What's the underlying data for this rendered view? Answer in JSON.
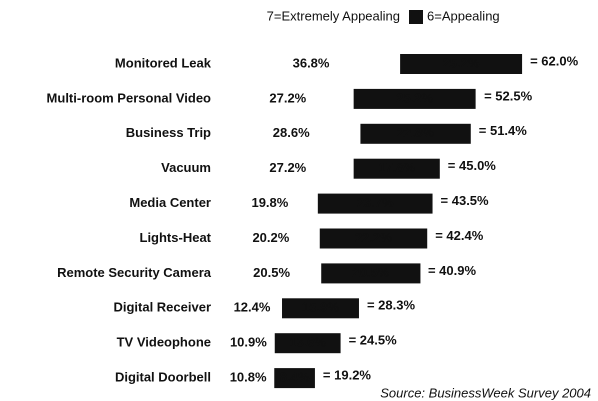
{
  "chart_data": {
    "type": "bar",
    "orientation": "horizontal",
    "stacked": true,
    "legend": "top",
    "categories": [
      "Monitored Leak",
      "Multi-room Personal Video",
      "Business Trip",
      "Vacuum",
      "Media Center",
      "Lights-Heat",
      "Remote Security Camera",
      "Digital Receiver",
      "TV Videophone",
      "Digital Doorbell"
    ],
    "series": [
      {
        "name": "7=Extremely Appealing",
        "color": "#ffffff",
        "values": [
          36.8,
          27.2,
          28.6,
          27.2,
          19.8,
          20.2,
          20.5,
          12.4,
          10.9,
          10.8
        ],
        "value_labels": [
          "36.8%",
          "27.2%",
          "28.6%",
          "27.2%",
          "19.8%",
          "20.2%",
          "20.5%",
          "12.4%",
          "10.9%",
          "10.8%"
        ]
      },
      {
        "name": "6=Appealing",
        "color": "#111111",
        "values": [
          25.2,
          25.2,
          22.8,
          17.8,
          23.7,
          22.2,
          20.5,
          15.9,
          13.6,
          8.4
        ],
        "value_labels": [
          "25.2%",
          "25.2%",
          "22.8%",
          "17.8%",
          "23.7%",
          "22.2%",
          "20.5%",
          "15.9%",
          "13.6%",
          "8.4%"
        ]
      }
    ],
    "totals": [
      62.0,
      52.5,
      51.4,
      45.0,
      43.5,
      42.4,
      40.9,
      28.3,
      24.5,
      19.2
    ],
    "total_labels": [
      "= 62.0%",
      "= 52.5%",
      "= 51.4%",
      "= 45.0%",
      "= 43.5%",
      "= 42.4%",
      "= 40.9%",
      "= 28.3%",
      "= 24.5%",
      "= 19.2%"
    ],
    "source": "Source: BusinessWeek Survey 2004"
  }
}
